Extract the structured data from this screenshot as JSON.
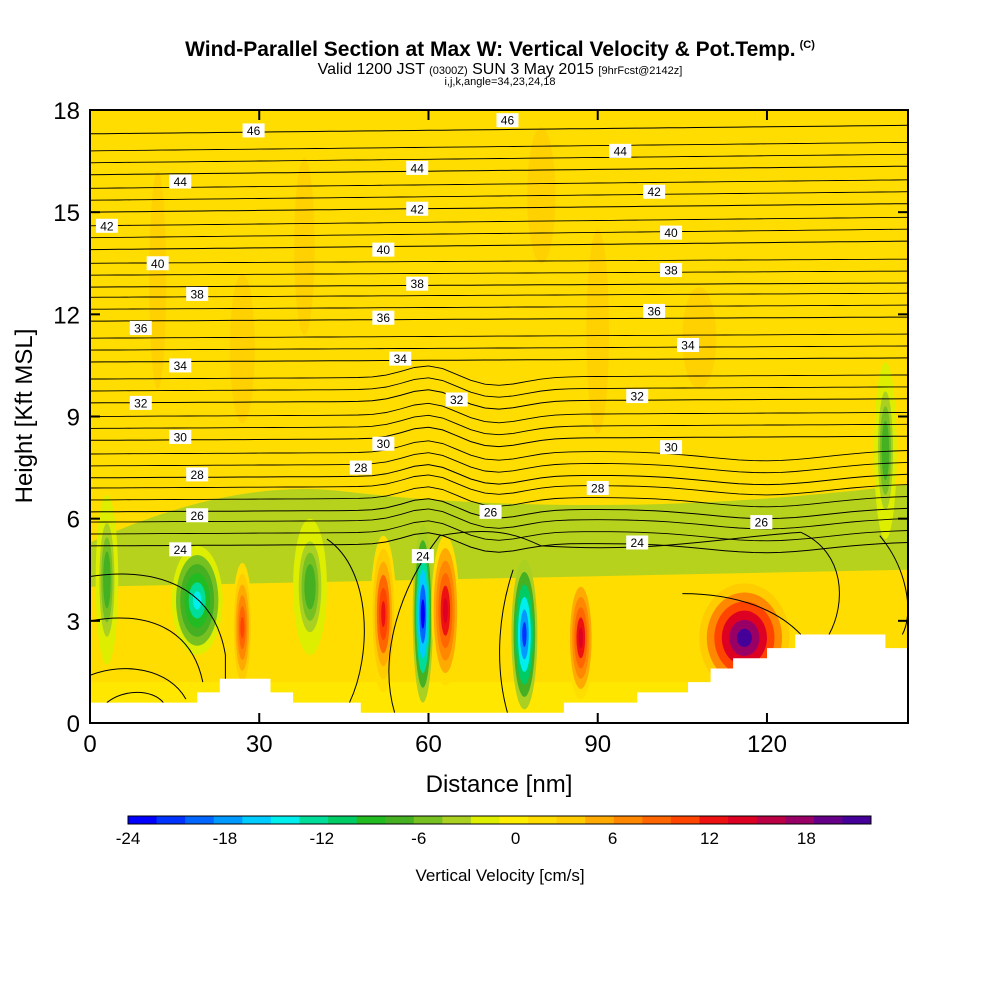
{
  "title": {
    "main": "Wind-Parallel Section at Max W: Vertical Velocity & Pot.Temp.",
    "copyright": "(C)",
    "valid_prefix": "Valid 1200 JST",
    "valid_z": "(0300Z)",
    "valid_date": "SUN 3 May 2015",
    "forecast": "[9hrFcst@2142z]",
    "indices": "i,j,k,angle=34,23,24,18"
  },
  "colors": {
    "background_field": "#ffe600",
    "terrain": "#ffffff",
    "contour": "#000000",
    "colorbar": [
      "#0000ff",
      "#0033ff",
      "#0066ff",
      "#0099ff",
      "#00ccff",
      "#00eeee",
      "#00dd99",
      "#00cc66",
      "#22bb22",
      "#44b022",
      "#77c022",
      "#aad022",
      "#ddee00",
      "#ffee00",
      "#ffdd00",
      "#ffcc00",
      "#ffaa00",
      "#ff8800",
      "#ff6600",
      "#ff4400",
      "#ee1111",
      "#dd0022",
      "#bb0044",
      "#990066",
      "#660088",
      "#440099"
    ]
  },
  "chart_data": {
    "type": "heatmap",
    "xlabel": "Distance [nm]",
    "ylabel": "Height [Kft MSL]",
    "xlim": [
      0,
      145
    ],
    "ylim": [
      0,
      18
    ],
    "xticks": [
      0,
      30,
      60,
      90,
      120
    ],
    "yticks": [
      0,
      3,
      6,
      9,
      12,
      15,
      18
    ],
    "colorbar": {
      "label": "Vertical Velocity [cm/s]",
      "range": [
        -24,
        22
      ],
      "ticks": [
        -24,
        -18,
        -12,
        -6,
        0,
        6,
        12,
        18
      ]
    },
    "contours": {
      "field": "Potential Temperature",
      "levels": [
        24,
        26,
        28,
        30,
        32,
        34,
        36,
        38,
        40,
        42,
        44,
        46
      ],
      "labels": [
        {
          "text": "46",
          "x": 29,
          "y": 17.4
        },
        {
          "text": "46",
          "x": 74,
          "y": 17.7
        },
        {
          "text": "44",
          "x": 16,
          "y": 15.9
        },
        {
          "text": "44",
          "x": 58,
          "y": 16.3
        },
        {
          "text": "44",
          "x": 94,
          "y": 16.8
        },
        {
          "text": "42",
          "x": 3,
          "y": 14.6
        },
        {
          "text": "42",
          "x": 58,
          "y": 15.1
        },
        {
          "text": "42",
          "x": 100,
          "y": 15.6
        },
        {
          "text": "40",
          "x": 12,
          "y": 13.5
        },
        {
          "text": "40",
          "x": 52,
          "y": 13.9
        },
        {
          "text": "40",
          "x": 103,
          "y": 14.4
        },
        {
          "text": "38",
          "x": 19,
          "y": 12.6
        },
        {
          "text": "38",
          "x": 58,
          "y": 12.9
        },
        {
          "text": "38",
          "x": 103,
          "y": 13.3
        },
        {
          "text": "36",
          "x": 9,
          "y": 11.6
        },
        {
          "text": "36",
          "x": 52,
          "y": 11.9
        },
        {
          "text": "36",
          "x": 100,
          "y": 12.1
        },
        {
          "text": "34",
          "x": 16,
          "y": 10.5
        },
        {
          "text": "34",
          "x": 55,
          "y": 10.7
        },
        {
          "text": "34",
          "x": 106,
          "y": 11.1
        },
        {
          "text": "32",
          "x": 9,
          "y": 9.4
        },
        {
          "text": "32",
          "x": 65,
          "y": 9.5
        },
        {
          "text": "32",
          "x": 97,
          "y": 9.6
        },
        {
          "text": "30",
          "x": 16,
          "y": 8.4
        },
        {
          "text": "30",
          "x": 52,
          "y": 8.2
        },
        {
          "text": "30",
          "x": 103,
          "y": 8.1
        },
        {
          "text": "28",
          "x": 19,
          "y": 7.3
        },
        {
          "text": "28",
          "x": 48,
          "y": 7.5
        },
        {
          "text": "28",
          "x": 90,
          "y": 6.9
        },
        {
          "text": "26",
          "x": 19,
          "y": 6.1
        },
        {
          "text": "26",
          "x": 71,
          "y": 6.2
        },
        {
          "text": "26",
          "x": 119,
          "y": 5.9
        },
        {
          "text": "24",
          "x": 16,
          "y": 5.1
        },
        {
          "text": "24",
          "x": 59,
          "y": 4.9
        },
        {
          "text": "24",
          "x": 97,
          "y": 5.3
        }
      ]
    },
    "velocity_features": [
      {
        "sign": "down",
        "x": 59,
        "y": 3.2,
        "peak": -24
      },
      {
        "sign": "down",
        "x": 77,
        "y": 2.6,
        "peak": -22
      },
      {
        "sign": "down",
        "x": 19,
        "y": 3.6,
        "peak": -14
      },
      {
        "sign": "down",
        "x": 3,
        "y": 4.2,
        "peak": -8
      },
      {
        "sign": "down",
        "x": 39,
        "y": 4.0,
        "peak": -8
      },
      {
        "sign": "down",
        "x": 141,
        "y": 8.0,
        "peak": -8
      },
      {
        "sign": "up",
        "x": 116,
        "y": 2.5,
        "peak": 21
      },
      {
        "sign": "up",
        "x": 63,
        "y": 3.3,
        "peak": 14
      },
      {
        "sign": "up",
        "x": 87,
        "y": 2.5,
        "peak": 14
      },
      {
        "sign": "up",
        "x": 52,
        "y": 3.2,
        "peak": 12
      },
      {
        "sign": "up",
        "x": 27,
        "y": 2.8,
        "peak": 11
      }
    ],
    "terrain_profile": [
      [
        0,
        0.6
      ],
      [
        19,
        0.6
      ],
      [
        19,
        0.9
      ],
      [
        23,
        0.9
      ],
      [
        23,
        1.3
      ],
      [
        32,
        1.3
      ],
      [
        32,
        0.9
      ],
      [
        36,
        0.9
      ],
      [
        36,
        0.6
      ],
      [
        48,
        0.6
      ],
      [
        48,
        0.3
      ],
      [
        84,
        0.3
      ],
      [
        84,
        0.6
      ],
      [
        97,
        0.6
      ],
      [
        97,
        0.9
      ],
      [
        106,
        0.9
      ],
      [
        106,
        1.2
      ],
      [
        110,
        1.2
      ],
      [
        110,
        1.6
      ],
      [
        114,
        1.6
      ],
      [
        114,
        1.9
      ],
      [
        120,
        1.9
      ],
      [
        120,
        2.2
      ],
      [
        125,
        2.2
      ],
      [
        125,
        2.6
      ],
      [
        141,
        2.6
      ],
      [
        141,
        2.2
      ],
      [
        145,
        2.2
      ]
    ]
  }
}
